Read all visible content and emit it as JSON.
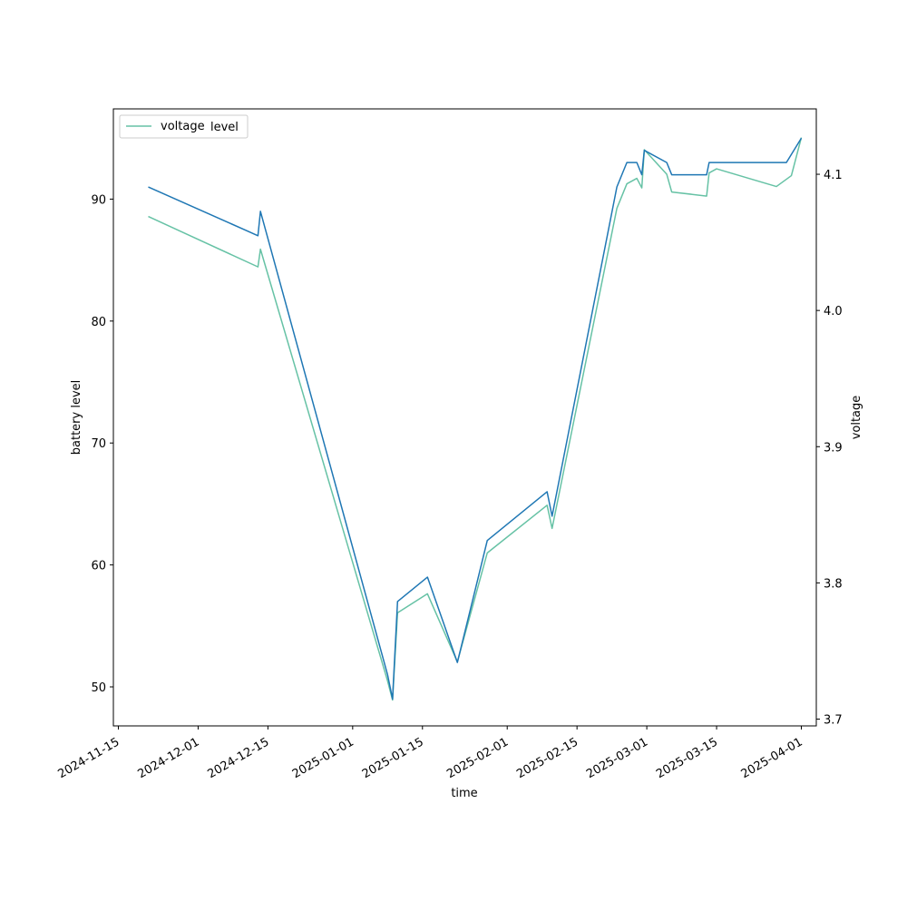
{
  "chart_data": {
    "type": "line",
    "title": "",
    "xlabel": "time",
    "ylabel": "battery level",
    "y2label": "voltage",
    "xlim": [
      "2024-11-14",
      "2025-04-04"
    ],
    "ylim": [
      46.8,
      97.4
    ],
    "y2lim": [
      3.695,
      4.148
    ],
    "x_ticks": [
      "2024-11-15",
      "2024-12-01",
      "2024-12-15",
      "2025-01-01",
      "2025-01-15",
      "2025-02-01",
      "2025-02-15",
      "2025-03-01",
      "2025-03-15",
      "2025-04-01"
    ],
    "y_ticks": [
      "50",
      "60",
      "70",
      "80",
      "90"
    ],
    "y2_ticks": [
      "3.7",
      "3.8",
      "3.9",
      "4.0",
      "4.1"
    ],
    "legend": {
      "placement": "top-left",
      "entries": [
        "voltage",
        "level"
      ]
    },
    "grid": false,
    "series": [
      {
        "name": "level",
        "axis": "left",
        "color": "#1f77b4",
        "points": [
          [
            "2024-11-21",
            91
          ],
          [
            "2024-12-13",
            87
          ],
          [
            "2024-12-13T12:00",
            89
          ],
          [
            "2025-01-08",
            51
          ],
          [
            "2025-01-09",
            49
          ],
          [
            "2025-01-10",
            57
          ],
          [
            "2025-01-16",
            59
          ],
          [
            "2025-01-22",
            52
          ],
          [
            "2025-01-28",
            62
          ],
          [
            "2025-02-09",
            66
          ],
          [
            "2025-02-10",
            64
          ],
          [
            "2025-02-23",
            91
          ],
          [
            "2025-02-25",
            93
          ],
          [
            "2025-02-27",
            93
          ],
          [
            "2025-02-28",
            92
          ],
          [
            "2025-02-28T12:00",
            94
          ],
          [
            "2025-03-05",
            93
          ],
          [
            "2025-03-06",
            92
          ],
          [
            "2025-03-13",
            92
          ],
          [
            "2025-03-13T12:00",
            93
          ],
          [
            "2025-03-29",
            93
          ],
          [
            "2025-04-01",
            95
          ]
        ]
      },
      {
        "name": "voltage",
        "axis": "right",
        "color": "#66c2a5",
        "points": [
          [
            "2024-11-21",
            4.069
          ],
          [
            "2024-12-13",
            4.032
          ],
          [
            "2024-12-13T12:00",
            4.045
          ],
          [
            "2025-01-08",
            3.728
          ],
          [
            "2025-01-09",
            3.714
          ],
          [
            "2025-01-10",
            3.778
          ],
          [
            "2025-01-16",
            3.792
          ],
          [
            "2025-01-22",
            3.742
          ],
          [
            "2025-01-28",
            3.822
          ],
          [
            "2025-02-09",
            3.857
          ],
          [
            "2025-02-10",
            3.84
          ],
          [
            "2025-02-23",
            4.075
          ],
          [
            "2025-02-25",
            4.093
          ],
          [
            "2025-02-27",
            4.097
          ],
          [
            "2025-02-28",
            4.09
          ],
          [
            "2025-02-28T12:00",
            4.118
          ],
          [
            "2025-03-05",
            4.1
          ],
          [
            "2025-03-06",
            4.087
          ],
          [
            "2025-03-13",
            4.084
          ],
          [
            "2025-03-13T12:00",
            4.101
          ],
          [
            "2025-03-15",
            4.104
          ],
          [
            "2025-03-27",
            4.091
          ],
          [
            "2025-03-30",
            4.099
          ],
          [
            "2025-04-01",
            4.127
          ]
        ]
      }
    ]
  }
}
